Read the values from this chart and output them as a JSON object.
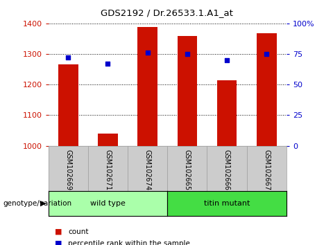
{
  "title": "GDS2192 / Dr.26533.1.A1_at",
  "categories": [
    "GSM102669",
    "GSM102671",
    "GSM102674",
    "GSM102665",
    "GSM102666",
    "GSM102667"
  ],
  "bar_values": [
    1265,
    1040,
    1388,
    1358,
    1213,
    1368
  ],
  "percentile_values": [
    72,
    67,
    76,
    75,
    70,
    75
  ],
  "bar_bottom": 1000,
  "bar_color": "#cc1100",
  "dot_color": "#0000cc",
  "ylim_left": [
    1000,
    1400
  ],
  "ylim_right": [
    0,
    100
  ],
  "yticks_left": [
    1000,
    1100,
    1200,
    1300,
    1400
  ],
  "yticks_right": [
    0,
    25,
    50,
    75,
    100
  ],
  "ytick_right_labels": [
    "0",
    "25",
    "50",
    "75",
    "100%"
  ],
  "ylabel_left_color": "#cc1100",
  "ylabel_right_color": "#0000cc",
  "groups": [
    {
      "label": "wild type",
      "indices": [
        0,
        1,
        2
      ],
      "color": "#aaffaa"
    },
    {
      "label": "titin mutant",
      "indices": [
        3,
        4,
        5
      ],
      "color": "#44dd44"
    }
  ],
  "group_label": "genotype/variation",
  "legend_count_label": "count",
  "legend_pct_label": "percentile rank within the sample",
  "bg_color": "#ffffff",
  "plot_bg_color": "#ffffff",
  "grid_color": "#000000",
  "tick_label_bg": "#cccccc",
  "bar_width": 0.5
}
